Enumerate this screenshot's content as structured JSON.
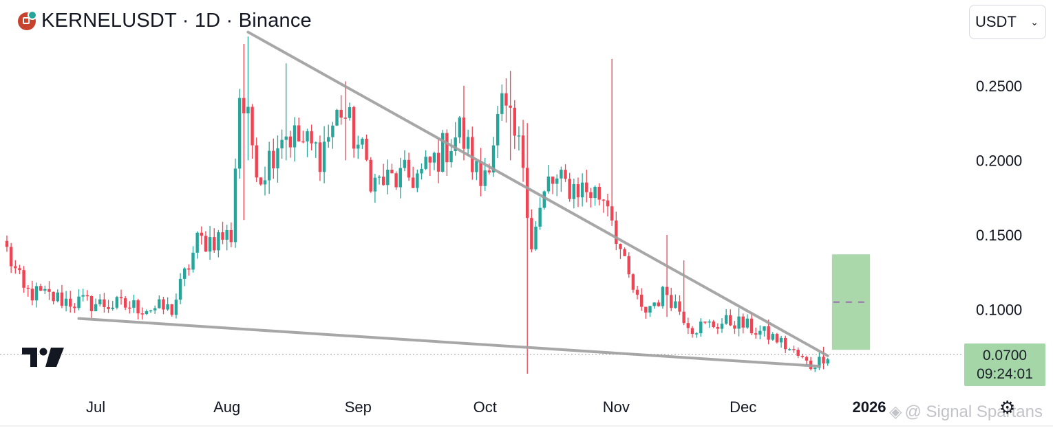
{
  "header": {
    "title": "KERNELUSDT · 1D · Binance",
    "logo_icon": "kernel-coin-icon"
  },
  "currency_select": {
    "value": "USDT",
    "icon": "chevron-down-icon"
  },
  "price_label": {
    "price": "0.0700",
    "countdown": "09:24:01"
  },
  "watermark": {
    "text": "@ Signal Spartans",
    "icon": "binance-diamond-icon"
  },
  "settings_icon": "gear-icon",
  "colors": {
    "up": "#26a69a",
    "down": "#ef4453",
    "trendline": "#9e9e9e",
    "target_box": "#a5d6a7",
    "target_dash": "#a06bb5",
    "price_line": "#9e9e9e"
  },
  "chart_data": {
    "type": "candlestick",
    "symbol": "KERNELUSDT",
    "interval": "1D",
    "exchange": "Binance",
    "x_ticks": [
      "Jul",
      "Aug",
      "Sep",
      "Oct",
      "Nov",
      "Dec",
      "2026"
    ],
    "y_ticks": [
      "0.2500",
      "0.2000",
      "0.1500",
      "0.1000"
    ],
    "ylim": [
      0.045,
      0.29
    ],
    "last_price": 0.07,
    "segments": [
      {
        "from_date": "2025-06-10",
        "to_date": "2025-06-15",
        "from": 0.146,
        "to": 0.112
      },
      {
        "from_date": "2025-06-15",
        "to_date": "2025-06-27",
        "from": 0.112,
        "to": 0.105
      },
      {
        "from_date": "2025-06-27",
        "to_date": "2025-07-20",
        "from": 0.105,
        "to": 0.1
      },
      {
        "from_date": "2025-07-20",
        "to_date": "2025-07-26",
        "from": 0.1,
        "to": 0.145
      },
      {
        "from_date": "2025-07-26",
        "to_date": "2025-08-03",
        "from": 0.145,
        "to": 0.15
      },
      {
        "from_date": "2025-08-03",
        "to_date": "2025-08-05",
        "from": 0.15,
        "to": 0.245
      },
      {
        "from_date": "2025-08-05",
        "to_date": "2025-08-10",
        "from": 0.245,
        "to": 0.19
      },
      {
        "from_date": "2025-08-10",
        "to_date": "2025-08-15",
        "from": 0.19,
        "to": 0.22
      },
      {
        "from_date": "2025-08-15",
        "to_date": "2025-08-24",
        "from": 0.22,
        "to": 0.205
      },
      {
        "from_date": "2025-08-24",
        "to_date": "2025-08-29",
        "from": 0.205,
        "to": 0.235
      },
      {
        "from_date": "2025-08-29",
        "to_date": "2025-09-06",
        "from": 0.235,
        "to": 0.185
      },
      {
        "from_date": "2025-09-06",
        "to_date": "2025-09-17",
        "from": 0.185,
        "to": 0.19
      },
      {
        "from_date": "2025-09-17",
        "to_date": "2025-09-26",
        "from": 0.19,
        "to": 0.22
      },
      {
        "from_date": "2025-09-26",
        "to_date": "2025-10-01",
        "from": 0.22,
        "to": 0.185
      },
      {
        "from_date": "2025-10-01",
        "to_date": "2025-10-06",
        "from": 0.185,
        "to": 0.235
      },
      {
        "from_date": "2025-10-06",
        "to_date": "2025-10-11",
        "from": 0.235,
        "to": 0.2
      },
      {
        "from_date": "2025-10-11",
        "to_date": "2025-10-13",
        "from": 0.2,
        "to": 0.145
      },
      {
        "from_date": "2025-10-13",
        "to_date": "2025-10-17",
        "from": 0.145,
        "to": 0.185
      },
      {
        "from_date": "2025-10-17",
        "to_date": "2025-10-24",
        "from": 0.185,
        "to": 0.182
      },
      {
        "from_date": "2025-10-24",
        "to_date": "2025-10-31",
        "from": 0.182,
        "to": 0.175
      },
      {
        "from_date": "2025-10-31",
        "to_date": "2025-11-04",
        "from": 0.175,
        "to": 0.128
      },
      {
        "from_date": "2025-11-04",
        "to_date": "2025-11-08",
        "from": 0.128,
        "to": 0.098
      },
      {
        "from_date": "2025-11-08",
        "to_date": "2025-11-14",
        "from": 0.098,
        "to": 0.112
      },
      {
        "from_date": "2025-11-14",
        "to_date": "2025-11-20",
        "from": 0.112,
        "to": 0.088
      },
      {
        "from_date": "2025-11-20",
        "to_date": "2025-11-30",
        "from": 0.088,
        "to": 0.092
      },
      {
        "from_date": "2025-11-30",
        "to_date": "2025-12-10",
        "from": 0.092,
        "to": 0.08
      },
      {
        "from_date": "2025-12-10",
        "to_date": "2025-12-18",
        "from": 0.08,
        "to": 0.062
      },
      {
        "from_date": "2025-12-18",
        "to_date": "2025-12-22",
        "from": 0.062,
        "to": 0.07
      }
    ],
    "wicks": [
      {
        "date": "2025-08-05",
        "high": 0.278,
        "low": 0.16
      },
      {
        "date": "2025-08-06",
        "high": 0.283,
        "low": 0.2
      },
      {
        "date": "2025-08-15",
        "high": 0.265,
        "low": 0.2
      },
      {
        "date": "2025-08-29",
        "high": 0.253,
        "low": 0.2
      },
      {
        "date": "2025-09-26",
        "high": 0.25,
        "low": 0.2
      },
      {
        "date": "2025-10-07",
        "high": 0.26,
        "low": 0.2
      },
      {
        "date": "2025-10-11",
        "high": 0.225,
        "low": 0.057
      },
      {
        "date": "2025-10-31",
        "high": 0.268,
        "low": 0.17
      },
      {
        "date": "2025-11-13",
        "high": 0.15,
        "low": 0.095
      },
      {
        "date": "2025-11-17",
        "high": 0.133,
        "low": 0.095
      },
      {
        "date": "2025-11-30",
        "high": 0.101,
        "low": 0.082
      },
      {
        "date": "2025-12-20",
        "high": 0.075,
        "low": 0.06
      }
    ],
    "trendlines": [
      {
        "name": "resistance",
        "from": [
          "2025-08-06",
          0.286
        ],
        "to": [
          "2025-12-21",
          0.069
        ]
      },
      {
        "name": "support",
        "from": [
          "2025-06-27",
          0.094
        ],
        "to": [
          "2025-12-19",
          0.062
        ]
      }
    ],
    "target_zone": {
      "from_date": "2025-12-22",
      "to_date": "2025-12-31",
      "low": 0.073,
      "high": 0.137,
      "mid": 0.105
    },
    "price_line": 0.07
  }
}
